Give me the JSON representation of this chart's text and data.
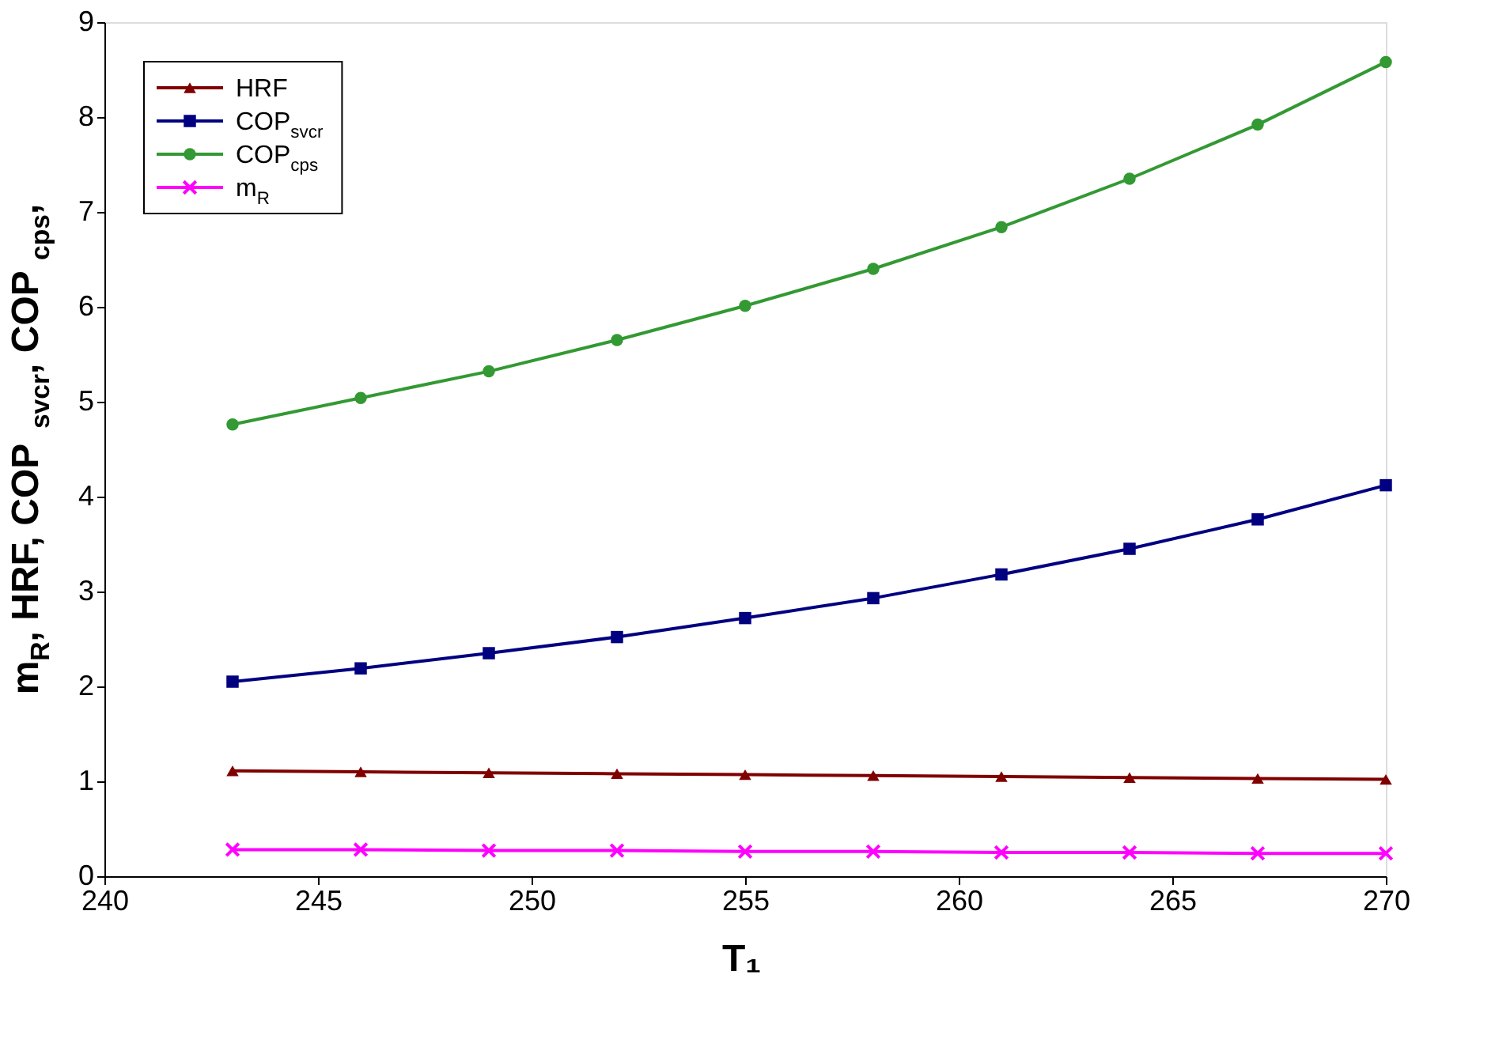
{
  "chart_data": {
    "type": "line",
    "xlabel": "T₁",
    "ylabel": "m$_{R}$, HRF,  COP$_{svcr}$,  COP$_{cps}$,",
    "x": [
      243,
      246,
      249,
      252,
      255,
      258,
      261,
      264,
      267,
      270
    ],
    "series": [
      {
        "name": "HRF",
        "color": "#800000",
        "marker": "triangle",
        "values": [
          1.11,
          1.1,
          1.09,
          1.08,
          1.07,
          1.06,
          1.05,
          1.04,
          1.03,
          1.02
        ]
      },
      {
        "name": "COP$_{svcr}$",
        "color": "#000080",
        "marker": "square",
        "values": [
          2.05,
          2.19,
          2.35,
          2.52,
          2.72,
          2.93,
          3.18,
          3.45,
          3.76,
          4.12
        ]
      },
      {
        "name": "COP$_{cps}$",
        "color": "#339933",
        "marker": "circle",
        "values": [
          4.76,
          5.04,
          5.32,
          5.65,
          6.01,
          6.4,
          6.84,
          7.35,
          7.92,
          8.58
        ]
      },
      {
        "name": "m$_{R}$",
        "color": "#ff00ff",
        "marker": "cross",
        "values": [
          0.28,
          0.28,
          0.27,
          0.27,
          0.26,
          0.26,
          0.25,
          0.25,
          0.24,
          0.24
        ]
      }
    ],
    "xlim": [
      240,
      270
    ],
    "xticks": [
      240,
      245,
      250,
      255,
      260,
      265,
      270
    ],
    "ylim": [
      0,
      9
    ],
    "yticks": [
      0,
      1,
      2,
      3,
      4,
      5,
      6,
      7,
      8,
      9
    ],
    "grid": false,
    "legend": "top left",
    "line_style": "solid"
  }
}
